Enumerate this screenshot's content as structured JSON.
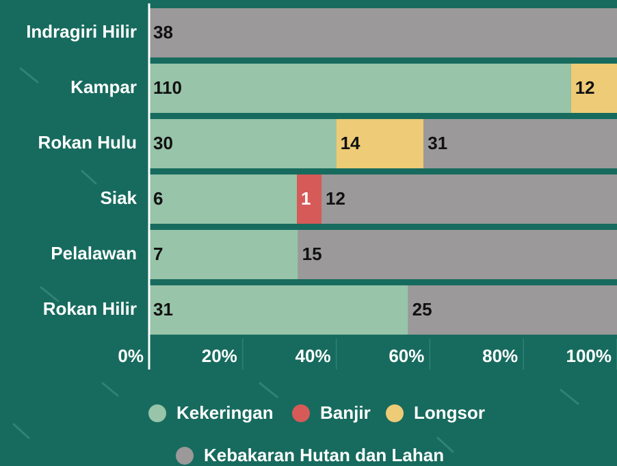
{
  "chart_data": {
    "type": "bar",
    "orientation": "horizontal",
    "stacking": "percent",
    "categories": [
      "Indragiri Hilir",
      "Kampar",
      "Rokan Hulu",
      "Siak",
      "Pelalawan",
      "Rokan Hilir"
    ],
    "series": [
      {
        "name": "Kekeringan",
        "color": "#98c4a9",
        "values": [
          null,
          110,
          30,
          6,
          7,
          31
        ]
      },
      {
        "name": "Banjir",
        "color": "#d65a57",
        "values": [
          null,
          null,
          null,
          1,
          null,
          null
        ]
      },
      {
        "name": "Longsor",
        "color": "#eecb76",
        "values": [
          null,
          12,
          14,
          null,
          null,
          null
        ]
      },
      {
        "name": "Kebakaran Hutan dan Lahan",
        "color": "#9b999a",
        "values": [
          38,
          null,
          31,
          12,
          15,
          25
        ]
      }
    ],
    "xlim": [
      0,
      100
    ],
    "xticks": [
      {
        "value": 0,
        "label": "0%"
      },
      {
        "value": 20,
        "label": "20%"
      },
      {
        "value": 40,
        "label": "40%"
      },
      {
        "value": 60,
        "label": "60%"
      },
      {
        "value": 80,
        "label": "80%"
      },
      {
        "value": 100,
        "label": "100%"
      }
    ],
    "grid": true,
    "legend": "bottom"
  }
}
